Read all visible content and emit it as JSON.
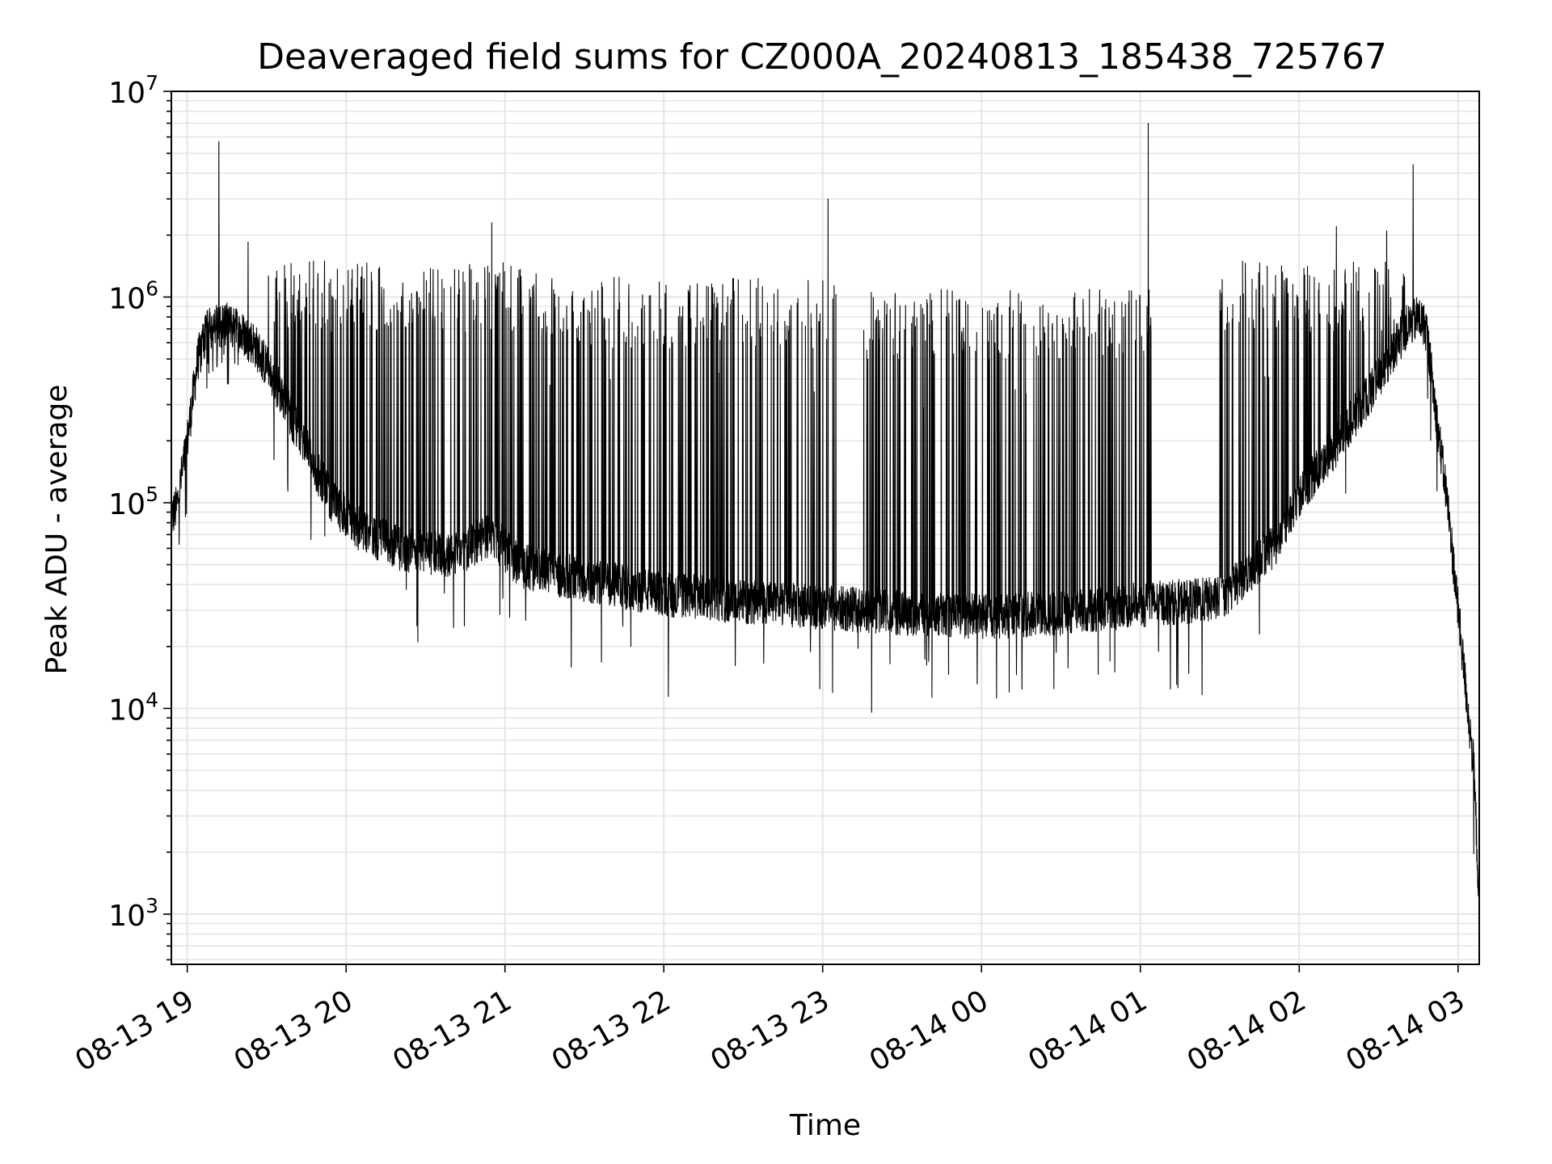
{
  "chart_data": {
    "type": "line",
    "title": "Deaveraged field sums for CZ000A_20240813_185438_725767",
    "xlabel": "Time",
    "ylabel": "Peak ADU - average",
    "yscale": "log",
    "xlim": [
      "2024-08-13T18:54",
      "2024-08-14T03:08"
    ],
    "ylim": [
      570,
      10000000
    ],
    "grid": true,
    "line_color": "#000000",
    "grid_color": "#e6e6e6",
    "x_ticks": [
      {
        "t": "2024-08-13T19:00",
        "label": "08-13 19"
      },
      {
        "t": "2024-08-13T20:00",
        "label": "08-13 20"
      },
      {
        "t": "2024-08-13T21:00",
        "label": "08-13 21"
      },
      {
        "t": "2024-08-13T22:00",
        "label": "08-13 22"
      },
      {
        "t": "2024-08-13T23:00",
        "label": "08-13 23"
      },
      {
        "t": "2024-08-14T00:00",
        "label": "08-14 00"
      },
      {
        "t": "2024-08-14T01:00",
        "label": "08-14 01"
      },
      {
        "t": "2024-08-14T02:00",
        "label": "08-14 02"
      },
      {
        "t": "2024-08-14T03:00",
        "label": "08-14 03"
      }
    ],
    "y_ticks": [
      {
        "v": 1000,
        "base": "10",
        "exp": "3"
      },
      {
        "v": 10000,
        "base": "10",
        "exp": "4"
      },
      {
        "v": 100000,
        "base": "10",
        "exp": "5"
      },
      {
        "v": 1000000,
        "base": "10",
        "exp": "6"
      },
      {
        "v": 10000000,
        "base": "10",
        "exp": "7"
      }
    ],
    "series": [
      {
        "baseline": [
          [
            "2024-08-13T18:54",
            85000
          ],
          [
            "2024-08-13T18:56",
            95000
          ],
          [
            "2024-08-13T19:00",
            200000
          ],
          [
            "2024-08-13T19:04",
            500000
          ],
          [
            "2024-08-13T19:08",
            700000
          ],
          [
            "2024-08-13T19:15",
            750000
          ],
          [
            "2024-08-13T19:25",
            600000
          ],
          [
            "2024-08-13T19:35",
            350000
          ],
          [
            "2024-08-13T19:45",
            180000
          ],
          [
            "2024-08-13T19:55",
            100000
          ],
          [
            "2024-08-13T20:05",
            75000
          ],
          [
            "2024-08-13T20:20",
            60000
          ],
          [
            "2024-08-13T20:40",
            55000
          ],
          [
            "2024-08-13T20:55",
            70000
          ],
          [
            "2024-08-13T21:05",
            50000
          ],
          [
            "2024-08-13T21:20",
            45000
          ],
          [
            "2024-08-13T21:40",
            40000
          ],
          [
            "2024-08-13T22:00",
            36000
          ],
          [
            "2024-08-13T22:30",
            33000
          ],
          [
            "2024-08-13T23:00",
            31000
          ],
          [
            "2024-08-13T23:30",
            29000
          ],
          [
            "2024-08-14T00:00",
            28000
          ],
          [
            "2024-08-14T00:30",
            29000
          ],
          [
            "2024-08-14T01:00",
            32000
          ],
          [
            "2024-08-14T01:30",
            34000
          ],
          [
            "2024-08-14T01:50",
            60000
          ],
          [
            "2024-08-14T02:00",
            110000
          ],
          [
            "2024-08-14T02:15",
            200000
          ],
          [
            "2024-08-14T02:30",
            400000
          ],
          [
            "2024-08-14T02:40",
            700000
          ],
          [
            "2024-08-14T02:45",
            800000
          ],
          [
            "2024-08-14T02:48",
            700000
          ],
          [
            "2024-08-14T02:52",
            250000
          ],
          [
            "2024-08-14T02:56",
            100000
          ],
          [
            "2024-08-14T03:00",
            30000
          ],
          [
            "2024-08-14T03:04",
            9000
          ],
          [
            "2024-08-14T03:06",
            5000
          ],
          [
            "2024-08-14T03:08",
            1100
          ]
        ],
        "flare_bursts": [
          {
            "start": "2024-08-13T19:05",
            "end": "2024-08-13T19:18",
            "peak": 900000
          },
          {
            "start": "2024-08-13T19:30",
            "end": "2024-08-13T20:45",
            "peak": 1500000
          },
          {
            "start": "2024-08-13T20:45",
            "end": "2024-08-13T21:10",
            "peak": 1500000
          },
          {
            "start": "2024-08-13T21:10",
            "end": "2024-08-13T21:40",
            "peak": 1300000
          },
          {
            "start": "2024-08-13T21:40",
            "end": "2024-08-13T23:05",
            "peak": 1250000
          },
          {
            "start": "2024-08-13T23:15",
            "end": "2024-08-14T01:05",
            "peak": 1100000
          },
          {
            "start": "2024-08-14T01:30",
            "end": "2024-08-14T02:40",
            "peak": 1500000
          }
        ],
        "spikes": [
          [
            "2024-08-13T19:12",
            5700000
          ],
          [
            "2024-08-13T19:23",
            1850000
          ],
          [
            "2024-08-13T20:55",
            2300000
          ],
          [
            "2024-08-13T23:02",
            3000000
          ],
          [
            "2024-08-14T01:03",
            7000000
          ],
          [
            "2024-08-14T02:14",
            2200000
          ],
          [
            "2024-08-14T02:33",
            2100000
          ],
          [
            "2024-08-14T02:43",
            4400000
          ]
        ]
      }
    ]
  }
}
